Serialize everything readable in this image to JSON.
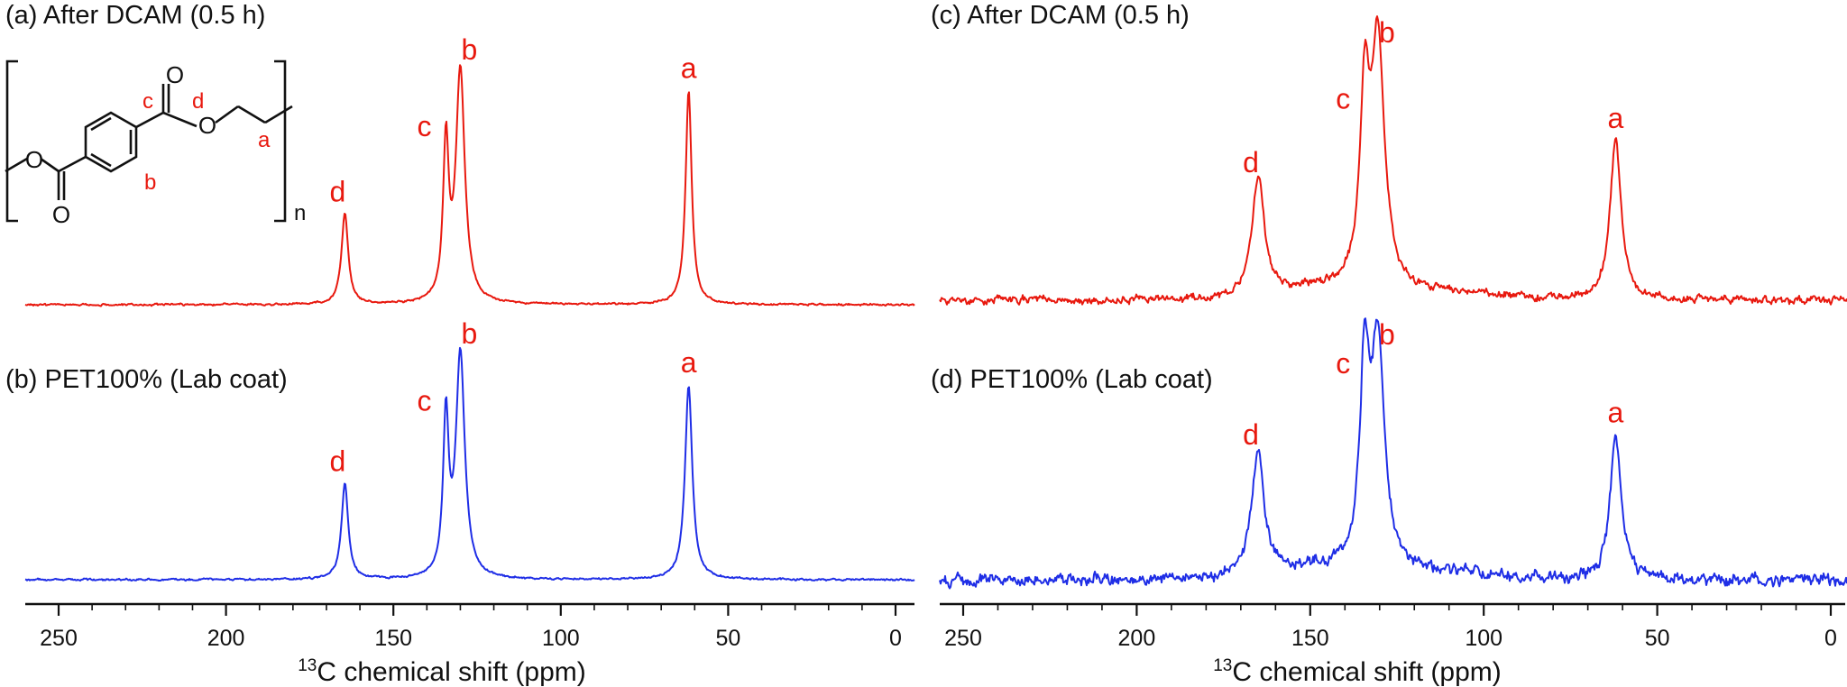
{
  "figure": {
    "structure": {
      "site_labels": [
        "c",
        "d",
        "b",
        "a"
      ],
      "subscript": "n",
      "oxygen": "O"
    }
  },
  "chart_data": [
    {
      "type": "line",
      "column": "left",
      "title": "(a) After DCAM (0.5 h)",
      "color": "#e8190f",
      "noise": "low",
      "xlabel": "13C chemical shift (ppm)",
      "xlim": [
        262,
        -5
      ],
      "x_reversed": true,
      "xticks": [
        250,
        200,
        150,
        100,
        50,
        0
      ],
      "baseline": 0,
      "peaks": [
        {
          "label": "d",
          "ppm": 164.5,
          "height": 0.39,
          "width": 1.2
        },
        {
          "label": "c",
          "ppm": 134.3,
          "height": 0.67,
          "width": 1.0
        },
        {
          "label": "b",
          "ppm": 130.0,
          "height": 1.0,
          "width": 1.6
        },
        {
          "label": "a",
          "ppm": 61.8,
          "height": 0.92,
          "width": 1.1
        }
      ]
    },
    {
      "type": "line",
      "column": "left",
      "title": "(b) PET100% (Lab coat)",
      "color": "#1f2ee6",
      "noise": "low",
      "xlabel": "13C chemical shift (ppm)",
      "xlim": [
        262,
        -5
      ],
      "x_reversed": true,
      "xticks": [
        250,
        200,
        150,
        100,
        50,
        0
      ],
      "baseline": 0,
      "peaks": [
        {
          "label": "d",
          "ppm": 164.5,
          "height": 0.43,
          "width": 1.2
        },
        {
          "label": "c",
          "ppm": 134.3,
          "height": 0.7,
          "width": 1.0
        },
        {
          "label": "b",
          "ppm": 130.0,
          "height": 1.0,
          "width": 1.6
        },
        {
          "label": "a",
          "ppm": 61.8,
          "height": 0.87,
          "width": 1.3
        }
      ]
    },
    {
      "type": "line",
      "column": "right",
      "title": "(c) After DCAM (0.5 h)",
      "color": "#e8190f",
      "noise": "high",
      "xlabel": "13C chemical shift (ppm)",
      "xlim": [
        262,
        -5
      ],
      "x_reversed": true,
      "xticks": [
        250,
        200,
        150,
        100,
        50,
        0
      ],
      "baseline": 0,
      "peaks": [
        {
          "label": "d",
          "ppm": 165.0,
          "height": 0.47,
          "width": 2.2
        },
        {
          "label": "c",
          "ppm": 134.3,
          "height": 0.73,
          "width": 1.6
        },
        {
          "label": "b",
          "ppm": 130.5,
          "height": 1.0,
          "width": 2.3
        },
        {
          "label": "a",
          "ppm": 62.0,
          "height": 0.65,
          "width": 1.9
        }
      ]
    },
    {
      "type": "line",
      "column": "right",
      "title": "(d) PET100% (Lab coat)",
      "color": "#1f2ee6",
      "noise": "high",
      "xlabel": "13C chemical shift (ppm)",
      "xlim": [
        262,
        -5
      ],
      "x_reversed": true,
      "xticks": [
        250,
        200,
        150,
        100,
        50,
        0
      ],
      "baseline": 0,
      "peaks": [
        {
          "label": "d",
          "ppm": 165.0,
          "height": 0.55,
          "width": 2.2
        },
        {
          "label": "c",
          "ppm": 134.3,
          "height": 0.87,
          "width": 1.6
        },
        {
          "label": "b",
          "ppm": 130.5,
          "height": 1.0,
          "width": 2.3
        },
        {
          "label": "a",
          "ppm": 62.0,
          "height": 0.65,
          "width": 1.9
        }
      ]
    }
  ]
}
